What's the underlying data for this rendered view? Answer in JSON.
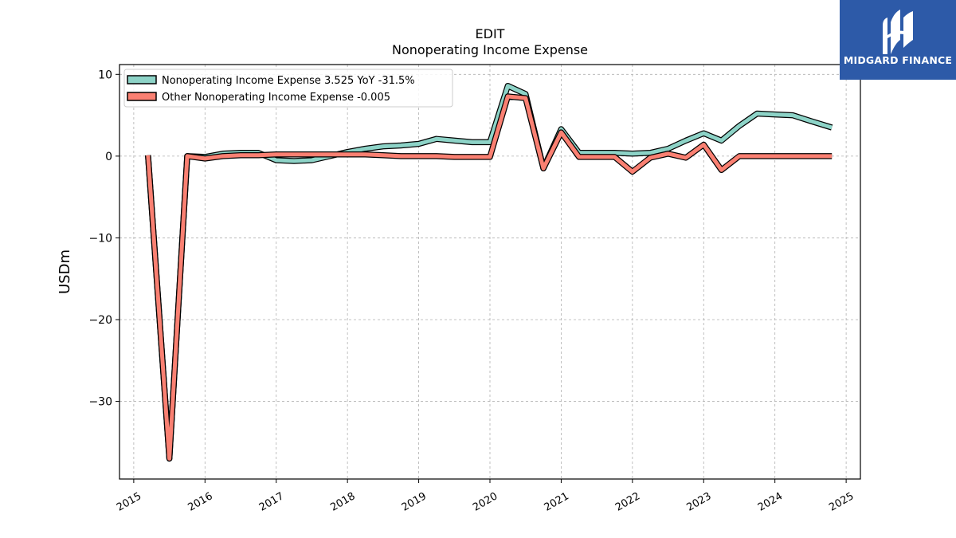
{
  "brand": {
    "name": "MIDGARD FINANCE",
    "bg_color": "#2d5aa8"
  },
  "chart_data": {
    "type": "line",
    "title": "EDIT",
    "subtitle": "Nonoperating Income Expense",
    "xlabel": "",
    "ylabel": "USDm",
    "xlim": [
      2014.8,
      2025.2
    ],
    "ylim": [
      -39.5,
      11.2
    ],
    "x_ticks": [
      2015,
      2016,
      2017,
      2018,
      2019,
      2020,
      2021,
      2022,
      2023,
      2024,
      2025
    ],
    "x_tick_labels": [
      "2015",
      "2016",
      "2017",
      "2018",
      "2019",
      "2020",
      "2021",
      "2022",
      "2023",
      "2024",
      "2025"
    ],
    "y_ticks": [
      10,
      0,
      -10,
      -20,
      -30
    ],
    "y_tick_labels": [
      "10",
      "0",
      "−10",
      "−20",
      "−30"
    ],
    "grid": true,
    "legend_position": "top-left",
    "series": [
      {
        "name": "Nonoperating Income Expense",
        "legend_label": "Nonoperating Income Expense  3.525 YoY -31.5%",
        "color": "#8dd3c7",
        "x": [
          2015.2,
          2015.5,
          2015.75,
          2016.0,
          2016.25,
          2016.5,
          2016.75,
          2017.0,
          2017.25,
          2017.5,
          2017.75,
          2018.0,
          2018.25,
          2018.5,
          2018.75,
          2019.0,
          2019.25,
          2019.5,
          2019.75,
          2020.0,
          2020.25,
          2020.5,
          2020.75,
          2021.0,
          2021.25,
          2021.5,
          2021.75,
          2022.0,
          2022.25,
          2022.5,
          2022.75,
          2023.0,
          2023.25,
          2023.5,
          2023.75,
          2024.0,
          2024.25,
          2024.5,
          2024.8
        ],
        "values": [
          0.1,
          -37,
          0.0,
          -0.1,
          0.3,
          0.4,
          0.4,
          -0.5,
          -0.6,
          -0.5,
          0.0,
          0.5,
          0.9,
          1.2,
          1.3,
          1.5,
          2.1,
          1.9,
          1.7,
          1.7,
          8.6,
          7.6,
          -1.5,
          3.3,
          0.4,
          0.4,
          0.4,
          0.3,
          0.4,
          0.9,
          1.9,
          2.8,
          1.9,
          3.7,
          5.2,
          5.1,
          5.0,
          4.3,
          3.5
        ]
      },
      {
        "name": "Other Nonoperating Income Expense",
        "legend_label": "Other Nonoperating Income Expense  -0.005",
        "color": "#fa8072",
        "x": [
          2015.2,
          2015.5,
          2015.75,
          2016.0,
          2016.25,
          2016.5,
          2016.75,
          2017.0,
          2017.25,
          2017.5,
          2017.75,
          2018.0,
          2018.25,
          2018.5,
          2018.75,
          2019.0,
          2019.25,
          2019.5,
          2019.75,
          2020.0,
          2020.25,
          2020.5,
          2020.75,
          2021.0,
          2021.25,
          2021.5,
          2021.75,
          2022.0,
          2022.25,
          2022.5,
          2022.75,
          2023.0,
          2023.25,
          2023.5,
          2023.75,
          2024.0,
          2024.25,
          2024.5,
          2024.8
        ],
        "values": [
          0.1,
          -37,
          0.0,
          -0.3,
          0.0,
          0.1,
          0.1,
          0.2,
          0.2,
          0.2,
          0.2,
          0.2,
          0.2,
          0.1,
          0.0,
          0.0,
          0.0,
          -0.1,
          -0.1,
          -0.1,
          7.3,
          7.1,
          -1.5,
          2.9,
          -0.1,
          -0.1,
          -0.1,
          -1.9,
          -0.2,
          0.3,
          -0.2,
          1.4,
          -1.7,
          0.0,
          0.0,
          0.0,
          0.0,
          0.0,
          0.0
        ]
      }
    ]
  }
}
